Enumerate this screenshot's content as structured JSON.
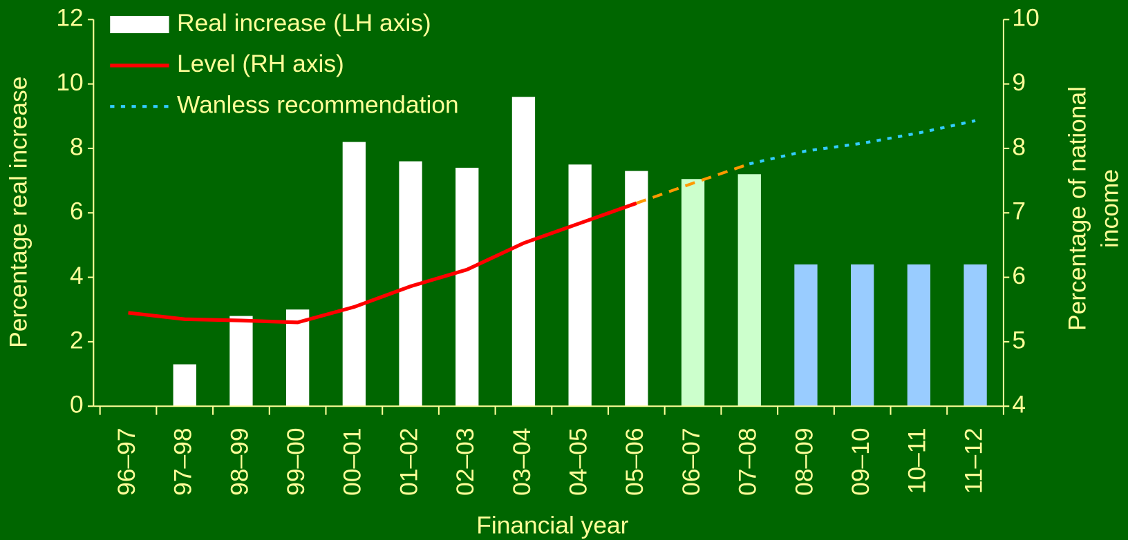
{
  "chart_data": {
    "type": "bar",
    "xlabel": "Financial year",
    "ylabel": "Percentage real increase",
    "y2label": [
      "Percentage of national",
      "income"
    ],
    "categories": [
      "96–97",
      "97–98",
      "98–99",
      "99–00",
      "00–01",
      "01–02",
      "02–03",
      "03–04",
      "04–05",
      "05–06",
      "06–07",
      "07–08",
      "08–09",
      "09–10",
      "10–11",
      "11–12"
    ],
    "series": [
      {
        "name": "Real increase (LH axis)",
        "type": "bar",
        "color": "#ffffff",
        "colors": [
          "#ffffff",
          "#ffffff",
          "#ffffff",
          "#ffffff",
          "#ffffff",
          "#ffffff",
          "#ffffff",
          "#ffffff",
          "#ffffff",
          "#ffffff",
          "#ccffcc",
          "#ccffcc",
          "#99ccff",
          "#99ccff",
          "#99ccff",
          "#99ccff"
        ],
        "values": [
          null,
          1.3,
          2.8,
          3.0,
          8.2,
          7.6,
          7.4,
          9.6,
          7.5,
          7.3,
          7.05,
          7.2,
          4.4,
          4.4,
          4.4,
          4.4
        ]
      },
      {
        "name": "Level (RH axis)",
        "type": "line",
        "axis": "y2",
        "color": "#ff0000",
        "dash": "solid",
        "values": [
          5.45,
          5.35,
          5.33,
          5.3,
          5.54,
          5.86,
          6.12,
          6.53,
          6.84,
          7.15,
          null,
          null,
          null,
          null,
          null,
          null
        ]
      },
      {
        "type": "line",
        "axis": "y2",
        "color": "#ff9900",
        "dash": "dashed",
        "values": [
          null,
          null,
          null,
          null,
          null,
          null,
          null,
          null,
          null,
          7.15,
          7.46,
          7.76,
          null,
          null,
          null,
          null
        ]
      },
      {
        "name": "Wanless recommendation",
        "type": "line",
        "axis": "y2",
        "color": "#33ccff",
        "dash": "dotted",
        "values": [
          null,
          null,
          null,
          null,
          null,
          null,
          null,
          null,
          null,
          null,
          null,
          7.76,
          7.96,
          8.08,
          8.24,
          8.43
        ]
      }
    ],
    "ylim": [
      0,
      12
    ],
    "yticks": [
      0,
      2,
      4,
      6,
      8,
      10,
      12
    ],
    "y2lim": [
      4,
      10
    ],
    "y2ticks": [
      4,
      5,
      6,
      7,
      8,
      9,
      10
    ],
    "legend": "upper left"
  }
}
